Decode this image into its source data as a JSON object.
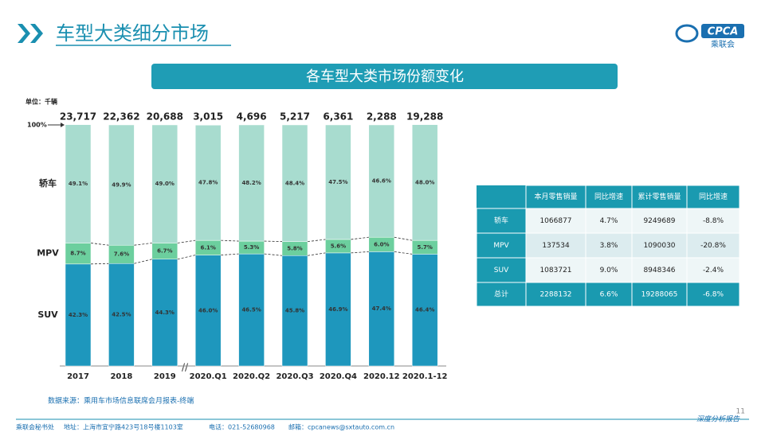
{
  "header": {
    "title": "车型大类细分市场",
    "logo": "CPCA",
    "logo_sub": "乘联会"
  },
  "chart_data": {
    "type": "bar",
    "stacked": true,
    "title": "各车型大类市场份额变化",
    "unit": "单位：千辆",
    "categories": [
      "2017",
      "2018",
      "2019",
      "2020.Q1",
      "2020.Q2",
      "2020.Q3",
      "2020.Q4",
      "2020.12",
      "2020.1-12"
    ],
    "totals": {
      "values": [
        23717,
        22362,
        20688,
        3015,
        4696,
        5217,
        6361,
        2288,
        19288
      ],
      "value_labels": [
        "23,717",
        "22,362",
        "20,688",
        "3,015",
        "4,696",
        "5,217",
        "6,361",
        "2,288",
        "19,288"
      ]
    },
    "series": [
      {
        "name": "SUV",
        "color": "#1e97bd",
        "values": [
          42.3,
          42.5,
          44.3,
          46.0,
          46.5,
          45.8,
          46.9,
          47.4,
          46.4
        ],
        "value_labels": [
          "42.3%",
          "42.5%",
          "44.3%",
          "46.0%",
          "46.5%",
          "45.8%",
          "46.9%",
          "47.4%",
          "46.4%"
        ]
      },
      {
        "name": "MPV",
        "color": "#6ccf9e",
        "values": [
          8.7,
          7.6,
          6.7,
          6.1,
          5.3,
          5.8,
          5.6,
          6.0,
          5.7
        ],
        "value_labels": [
          "8.7%",
          "7.6%",
          "6.7%",
          "6.1%",
          "5.3%",
          "5.8%",
          "5.6%",
          "6.0%",
          "5.7%"
        ]
      },
      {
        "name": "轿车",
        "color": "#a8dccf",
        "values": [
          49.1,
          49.9,
          49.0,
          47.8,
          48.2,
          48.4,
          47.5,
          46.6,
          48.0
        ],
        "value_labels": [
          "49.1%",
          "49.9%",
          "49.0%",
          "47.8%",
          "48.2%",
          "48.4%",
          "47.5%",
          "46.6%",
          "48.0%"
        ]
      }
    ],
    "ylim": [
      0,
      100
    ],
    "yticks": [
      {
        "value": 100,
        "label": "100%"
      }
    ],
    "source": "数据来源：乘用车市场信息联席会月报表-终端"
  },
  "table": {
    "header": [
      "本月零售销量",
      "同比增速",
      "累计零售销量",
      "同比增速"
    ],
    "rows": [
      [
        "轿车",
        "1066877",
        "4.7%",
        "9249689",
        "-8.8%"
      ],
      [
        "MPV",
        "137534",
        "3.8%",
        "1090030",
        "-20.8%"
      ],
      [
        "SUV",
        "1083721",
        "9.0%",
        "8948346",
        "-2.4%"
      ],
      [
        "总计",
        "2288132",
        "6.6%",
        "19288065",
        "-6.8%"
      ]
    ]
  },
  "footer": {
    "org": "乘联会秘书处",
    "address": "地址：上海市宜宁路423号18号楼1103室",
    "phone": "电话：021-52680968",
    "email": "邮箱：cpcanews@sxtauto.com.cn",
    "report": "深度分析报告",
    "page": "11"
  }
}
